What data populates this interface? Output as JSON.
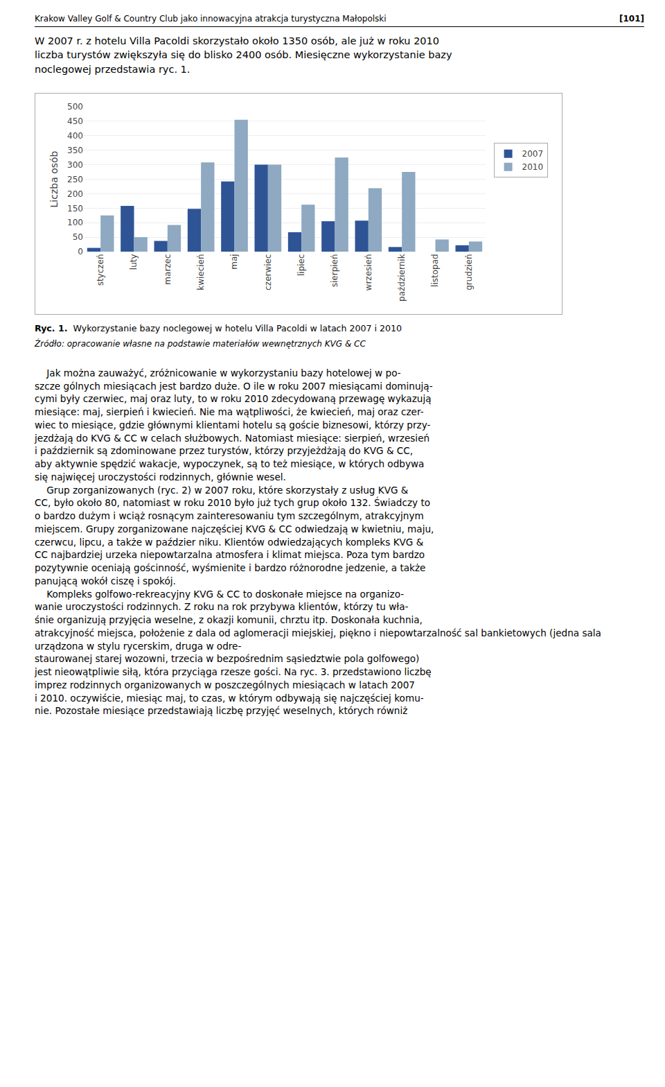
{
  "chart_data": {
    "type": "bar",
    "categories": [
      "styczeń",
      "luty",
      "marzec",
      "kwiecień",
      "maj",
      "czerwiec",
      "lipiec",
      "sierpień",
      "wrzesień",
      "październik",
      "listopad",
      "grudzień"
    ],
    "series": [
      {
        "name": "2007",
        "color": "#2E5496",
        "values": [
          13,
          158,
          37,
          148,
          242,
          300,
          67,
          105,
          107,
          16,
          0,
          22
        ]
      },
      {
        "name": "2010",
        "color": "#8EA9C1",
        "values": [
          125,
          50,
          92,
          308,
          455,
          300,
          162,
          325,
          219,
          275,
          42,
          35
        ]
      }
    ],
    "ylabel": "Liczba osób",
    "ylim": [
      0,
      500
    ],
    "yticks": [
      0,
      50,
      100,
      150,
      200,
      250,
      300,
      350,
      400,
      450,
      500
    ],
    "grid": true,
    "legend": "right"
  },
  "header_left": "Krakow Valley Golf & Country Club jako innowacyjna atrakcja turystyczna Małopolski",
  "header_right": "[101]",
  "para1": "W 2007 r. z hotelu Villa Pacoldi skorzystało około 1350 osób, ale już w roku 2010\nliczba turystów zwiększyła się do blisko 2400 osób. Miesięczne wykorzystanie bazy\nnoclegowej przedstawia ryc. 1.",
  "caption_bold": "Ryc. 1.",
  "caption_text": "Wykorzystanie bazy noclegowej w hotelu Villa Pacoldi w latach 2007 i 2010",
  "source": "Źródło: opracowanie własne na podstawie materiałów wewnętrznych KVG & CC",
  "body_text": "    Jak można zauważyć, zróżnicowanie w wykorzystaniu bazy hotelowej w po-\nszcze gólnych miesiącach jest bardzo duże. O ile w roku 2007 miesiącami dominują-\ncymi były czerwiec, maj oraz luty, to w roku 2010 zdecydowaną przewagę wykazują\nmiesiące: maj, sierpień i kwiecień. Nie ma wątpliwości, że kwiecień, maj oraz czer-\nwiec to miesiące, gdzie głównymi klientami hotelu są goście biznesowi, którzy przy-\njezdżają do KVG & CC w celach służbowych. Natomiast miesiące: sierpień, wrzesień\ni październik są zdominowane przez turystów, którzy przyjeżdżają do KVG & CC,\naby aktywnie spędzić wakacje, wypoczynek, są to też miesiące, w których odbywa\nsię najwięcej uroczystości rodzinnych, głównie wesel.\n    Grup zorganizowanych (ryc. 2) w 2007 roku, które skorzystały z usług KVG &\nCC, było około 80, natomiast w roku 2010 było już tych grup około 132. Świadczy to\no bardzo dużym i wciąż rosnącym zainteresowaniu tym szczególnym, atrakcyjnym\nmiejscem. Grupy zorganizowane najczęściej KVG & CC odwiedzają w kwietniu, maju,\nczerwcu, lipcu, a także w paździer niku. Klientów odwiedzających kompleks KVG &\nCC najbardziej urzeka niepowtarzalna atmosfera i klimat miejsca. Poza tym bardzo\npozytywnie oceniają gościnność, wyśmienite i bardzo różnorodne jedzenie, a także\npanującą wokół ciszę i spokój.\n    Kompleks golfowo-rekreacyjny KVG & CC to doskonałe miejsce na organizo-\nwanie uroczystości rodzinnych. Z roku na rok przybywa klientów, którzy tu wła-\nśnie organizują przyjęcia weselne, z okazji komunii, chrztu itp. Doskonała kuchnia,\natrakcyjność miejsca, położenie z dala od aglomeracji miejskiej, piękno i niepowtarzalność sal bankietowych (jedna sala urządzona w stylu rycerskim, druga w odre-\nstaurowanej starej wozowni, trzecia w bezpośrednim sąsiedztwie pola golfowego)\njest nieowątpliwie siłą, która przyciąga rzesze gości. Na ryc. 3. przedstawiono liczbę\nimprez rodzinnych organizowanych w poszczególnych miesiącach w latach 2007\ni 2010. oczywiście, miesiąc maj, to czas, w którym odbywają się najczęściej komu-\nnie. Pozostałe miesiące przedstawiają liczbę przyjęć weselnych, których równiż"
}
